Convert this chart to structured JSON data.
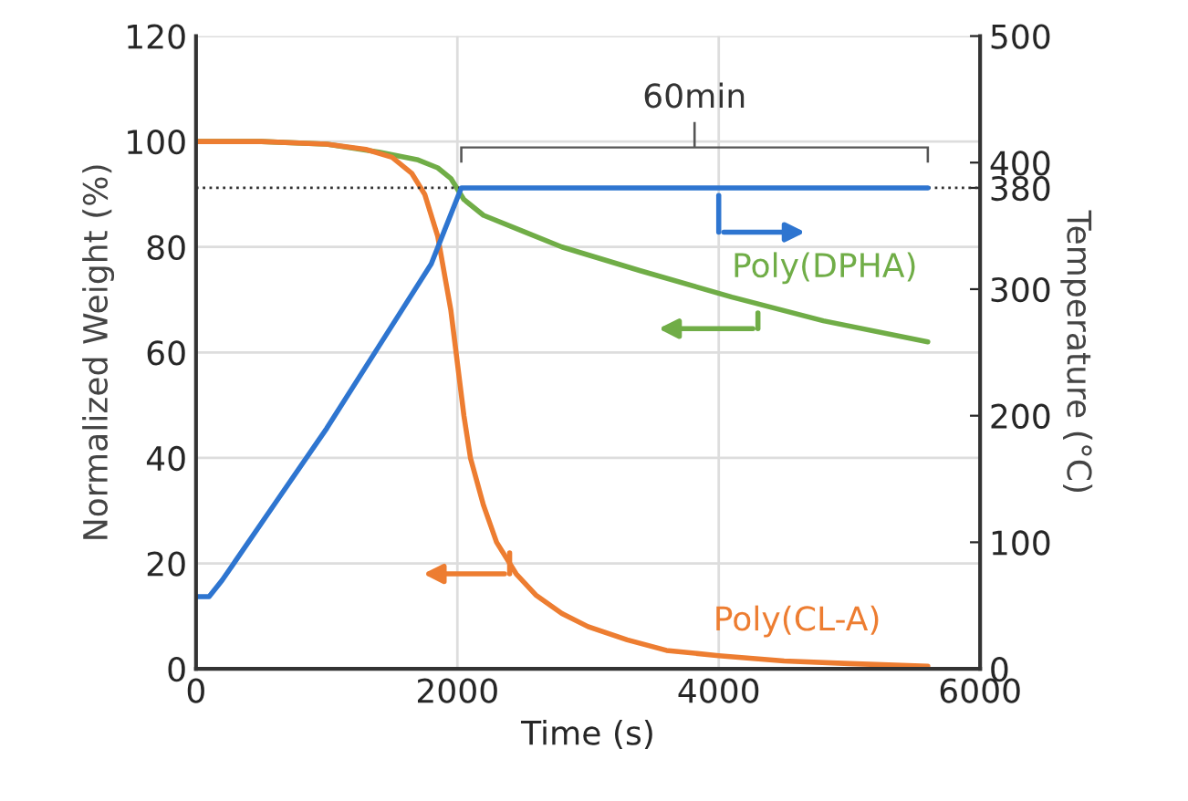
{
  "chart_data": {
    "type": "line",
    "xlabel": "Time (s)",
    "ylabel": "Normalized Weight (%)",
    "y2label": "Temperature (°C)",
    "xlim": [
      0,
      6000
    ],
    "xticks": [
      0,
      2000,
      4000,
      6000
    ],
    "ylim": [
      0,
      120
    ],
    "yticks": [
      0,
      20,
      40,
      60,
      80,
      100,
      120
    ],
    "y2lim": [
      0,
      500
    ],
    "y2ticks": [
      0,
      100,
      200,
      300,
      380,
      400,
      500
    ],
    "grid": true,
    "legend": false,
    "line_style": "solid",
    "marker": "none",
    "annotations": [
      "60min"
    ],
    "ref_lines": [
      {
        "axis": "y2",
        "value": 380,
        "color": "#333333",
        "line_style": "dotted"
      }
    ],
    "series": [
      {
        "name": "Poly(DPHA)",
        "color": "#70ad47",
        "x": [
          0,
          500,
          1000,
          1400,
          1700,
          1850,
          1950,
          2050,
          2200,
          2500,
          2800,
          3400,
          4100,
          4800,
          5600
        ],
        "values": [
          100,
          100,
          99.5,
          98,
          96.5,
          95,
          93,
          89,
          86,
          83,
          80,
          75.5,
          70.5,
          66,
          62
        ]
      },
      {
        "name": "Poly(CL-A)",
        "color": "#ed7d31",
        "x": [
          0,
          500,
          1000,
          1300,
          1500,
          1650,
          1750,
          1850,
          1950,
          2000,
          2050,
          2100,
          2200,
          2300,
          2450,
          2600,
          2800,
          3000,
          3300,
          3600,
          4000,
          4500,
          5000,
          5600
        ],
        "values": [
          100,
          100,
          99.5,
          98.5,
          97,
          94,
          90,
          82,
          68,
          58,
          48,
          40,
          31,
          24,
          18,
          14,
          10.5,
          8,
          5.5,
          3.5,
          2.5,
          1.5,
          1,
          0.5
        ]
      },
      {
        "color": "#2e75d0",
        "axis": "y2",
        "x": [
          0,
          100,
          200,
          600,
          1000,
          1400,
          1800,
          2030,
          5600
        ],
        "values": [
          57,
          57,
          70,
          130,
          190,
          255,
          320,
          380,
          380
        ]
      }
    ]
  }
}
